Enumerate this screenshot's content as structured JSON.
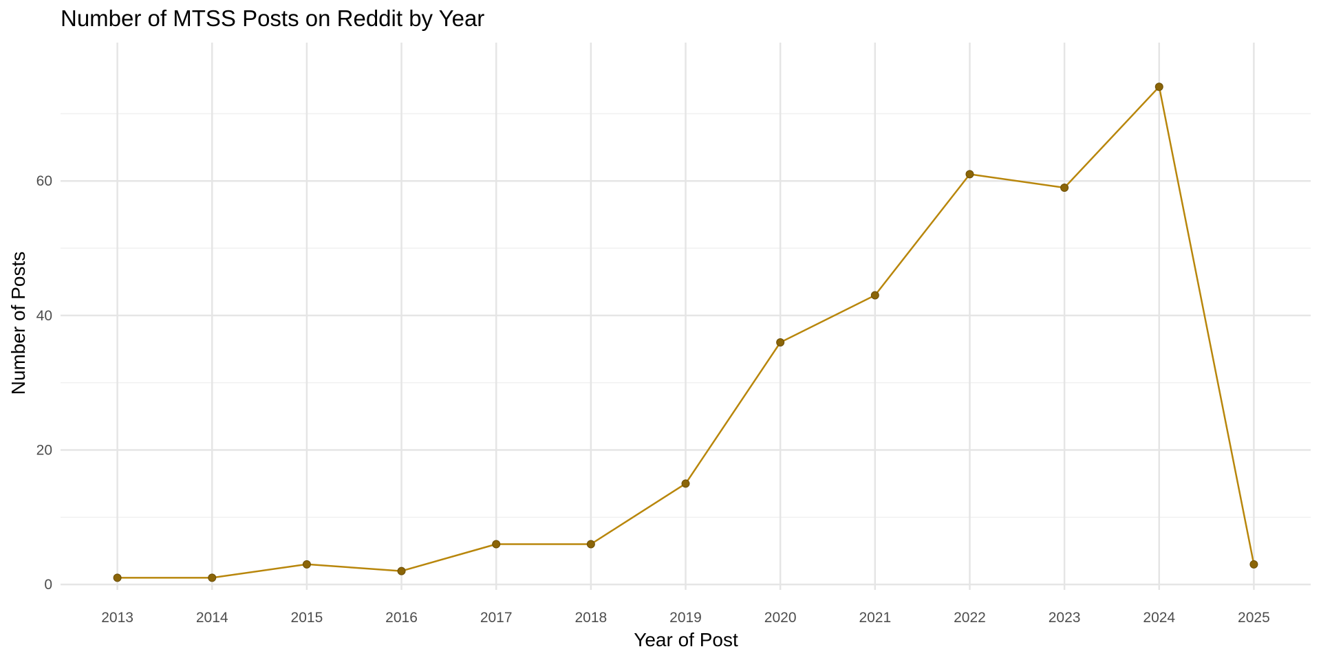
{
  "chart_data": {
    "type": "line",
    "title": "Number of MTSS Posts on Reddit by Year",
    "xlabel": "Year of Post",
    "ylabel": "Number of Posts",
    "x": [
      2013,
      2014,
      2015,
      2016,
      2017,
      2018,
      2019,
      2020,
      2021,
      2022,
      2023,
      2024,
      2025
    ],
    "x_tick_labels": [
      "2013",
      "2014",
      "2015",
      "2016",
      "2017",
      "2018",
      "2019",
      "2020",
      "2021",
      "2022",
      "2023",
      "2024",
      "2025"
    ],
    "series": [
      {
        "values": [
          1,
          1,
          3,
          2,
          6,
          6,
          15,
          36,
          43,
          61,
          59,
          74,
          3
        ]
      }
    ],
    "y_ticks": [
      0,
      20,
      40,
      60
    ],
    "y_tick_labels": [
      "0",
      "20",
      "40",
      "60"
    ],
    "xlim": [
      2012.4,
      2025.6
    ],
    "ylim": [
      -0.8,
      77.5
    ],
    "grid": true,
    "legend": "none",
    "colors": {
      "line": "#B8860B",
      "point": "#8B6508",
      "grid_major": "#e5e5e5",
      "grid_minor": "#f0f0f0"
    }
  }
}
